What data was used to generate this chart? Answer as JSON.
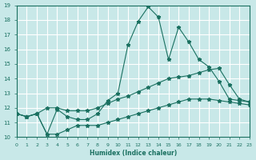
{
  "xlabel": "Humidex (Indice chaleur)",
  "bg_color": "#c8e8e8",
  "grid_color": "#ffffff",
  "line_color": "#1a7060",
  "xmin": 0,
  "xmax": 23,
  "ymin": 10,
  "ymax": 19,
  "line1_x": [
    0,
    1,
    2,
    3,
    4,
    5,
    6,
    7,
    8,
    9,
    10,
    11,
    12,
    13,
    14,
    15,
    16,
    17,
    18,
    19,
    20,
    21,
    22,
    23
  ],
  "line1_y": [
    11.6,
    11.4,
    11.6,
    10.2,
    11.9,
    11.4,
    11.2,
    11.2,
    11.6,
    12.5,
    13.0,
    16.3,
    17.9,
    18.9,
    18.2,
    15.3,
    17.5,
    16.5,
    15.3,
    14.8,
    13.8,
    12.6,
    12.5,
    12.4
  ],
  "line2_x": [
    0,
    1,
    2,
    3,
    4,
    5,
    6,
    7,
    8,
    9,
    10,
    11,
    12,
    13,
    14,
    15,
    16,
    17,
    18,
    19,
    20,
    21,
    22,
    23
  ],
  "line2_y": [
    11.6,
    11.4,
    11.6,
    12.0,
    12.0,
    11.8,
    11.8,
    11.8,
    12.0,
    12.3,
    12.6,
    12.8,
    13.1,
    13.4,
    13.7,
    14.0,
    14.1,
    14.2,
    14.4,
    14.6,
    14.7,
    13.6,
    12.6,
    12.4
  ],
  "line3_x": [
    0,
    1,
    2,
    3,
    4,
    5,
    6,
    7,
    8,
    9,
    10,
    11,
    12,
    13,
    14,
    15,
    16,
    17,
    18,
    19,
    20,
    21,
    22,
    23
  ],
  "line3_y": [
    11.6,
    11.4,
    11.6,
    10.2,
    10.2,
    10.5,
    10.8,
    10.8,
    10.8,
    11.0,
    11.2,
    11.4,
    11.6,
    11.8,
    12.0,
    12.2,
    12.4,
    12.6,
    12.6,
    12.6,
    12.5,
    12.4,
    12.3,
    12.2
  ],
  "yticks": [
    10,
    11,
    12,
    13,
    14,
    15,
    16,
    17,
    18,
    19
  ],
  "xticks": [
    0,
    1,
    2,
    3,
    4,
    5,
    6,
    7,
    8,
    9,
    10,
    11,
    12,
    13,
    14,
    15,
    16,
    17,
    18,
    19,
    20,
    21,
    22,
    23
  ]
}
